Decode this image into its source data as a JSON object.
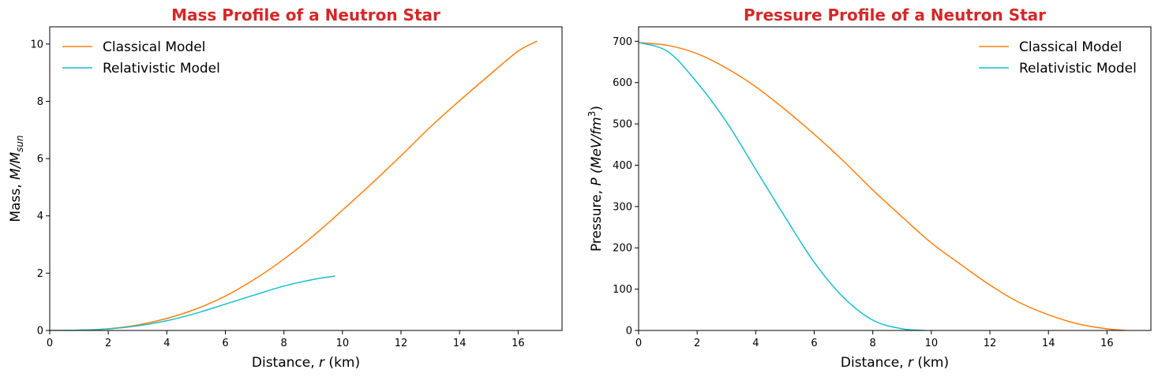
{
  "colors": {
    "title": "#d62728",
    "classical": "#ff7f0e",
    "relativistic": "#17becf"
  },
  "chart_data": [
    {
      "type": "line",
      "title": "Mass Profile of a Neutron Star",
      "xlabel_prefix": "Distance, ",
      "xlabel_var": "r",
      "xlabel_suffix": " (km)",
      "ylabel_prefix": "Mass, ",
      "ylabel_var": "M/M",
      "ylabel_sub": "sun",
      "xlim": [
        0,
        17.5
      ],
      "ylim": [
        0,
        10.6
      ],
      "xticks": [
        0,
        2,
        4,
        6,
        8,
        10,
        12,
        14,
        16
      ],
      "yticks": [
        0,
        2,
        4,
        6,
        8,
        10
      ],
      "legend_position": "upper-left",
      "grid": false,
      "series": [
        {
          "name": "Classical Model",
          "color_key": "classical",
          "x": [
            0,
            1,
            2,
            3,
            4,
            5,
            6,
            7,
            8,
            9,
            10,
            11,
            12,
            13,
            14,
            15,
            16,
            16.65
          ],
          "y": [
            0,
            0.01,
            0.06,
            0.19,
            0.42,
            0.75,
            1.2,
            1.79,
            2.49,
            3.3,
            4.2,
            5.13,
            6.1,
            7.1,
            8.02,
            8.9,
            9.75,
            10.1
          ]
        },
        {
          "name": "Relativistic Model",
          "color_key": "relativistic",
          "x": [
            0,
            1,
            2,
            3,
            4,
            5,
            6,
            7,
            8,
            9,
            9.75
          ],
          "y": [
            0,
            0.01,
            0.05,
            0.16,
            0.34,
            0.6,
            0.92,
            1.24,
            1.55,
            1.78,
            1.9
          ]
        }
      ]
    },
    {
      "type": "line",
      "title": "Pressure Profile of a Neutron Star",
      "xlabel_prefix": "Distance, ",
      "xlabel_var": "r",
      "xlabel_suffix": " (km)",
      "ylabel_prefix": "Pressure, ",
      "ylabel_var": "P",
      "ylabel_unit": "(MeV/fm",
      "ylabel_sup": "3",
      "ylabel_close": ")",
      "xlim": [
        0,
        17.5
      ],
      "ylim": [
        0,
        735
      ],
      "xticks": [
        0,
        2,
        4,
        6,
        8,
        10,
        12,
        14,
        16
      ],
      "yticks": [
        0,
        100,
        200,
        300,
        400,
        500,
        600,
        700
      ],
      "legend_position": "upper-right",
      "grid": false,
      "series": [
        {
          "name": "Classical Model",
          "color_key": "classical",
          "x": [
            0,
            1,
            2,
            3,
            4,
            5,
            6,
            7,
            8,
            9,
            10,
            11,
            12,
            13,
            14,
            15,
            16,
            16.65
          ],
          "y": [
            697,
            690,
            670,
            635,
            590,
            535,
            475,
            410,
            340,
            275,
            212,
            160,
            110,
            68,
            38,
            16,
            4,
            0
          ]
        },
        {
          "name": "Relativistic Model",
          "color_key": "relativistic",
          "x": [
            0,
            1,
            2,
            3,
            4,
            5,
            6,
            7,
            8,
            9,
            9.8
          ],
          "y": [
            697,
            675,
            600,
            505,
            390,
            275,
            165,
            80,
            25,
            4,
            0
          ]
        }
      ]
    }
  ]
}
